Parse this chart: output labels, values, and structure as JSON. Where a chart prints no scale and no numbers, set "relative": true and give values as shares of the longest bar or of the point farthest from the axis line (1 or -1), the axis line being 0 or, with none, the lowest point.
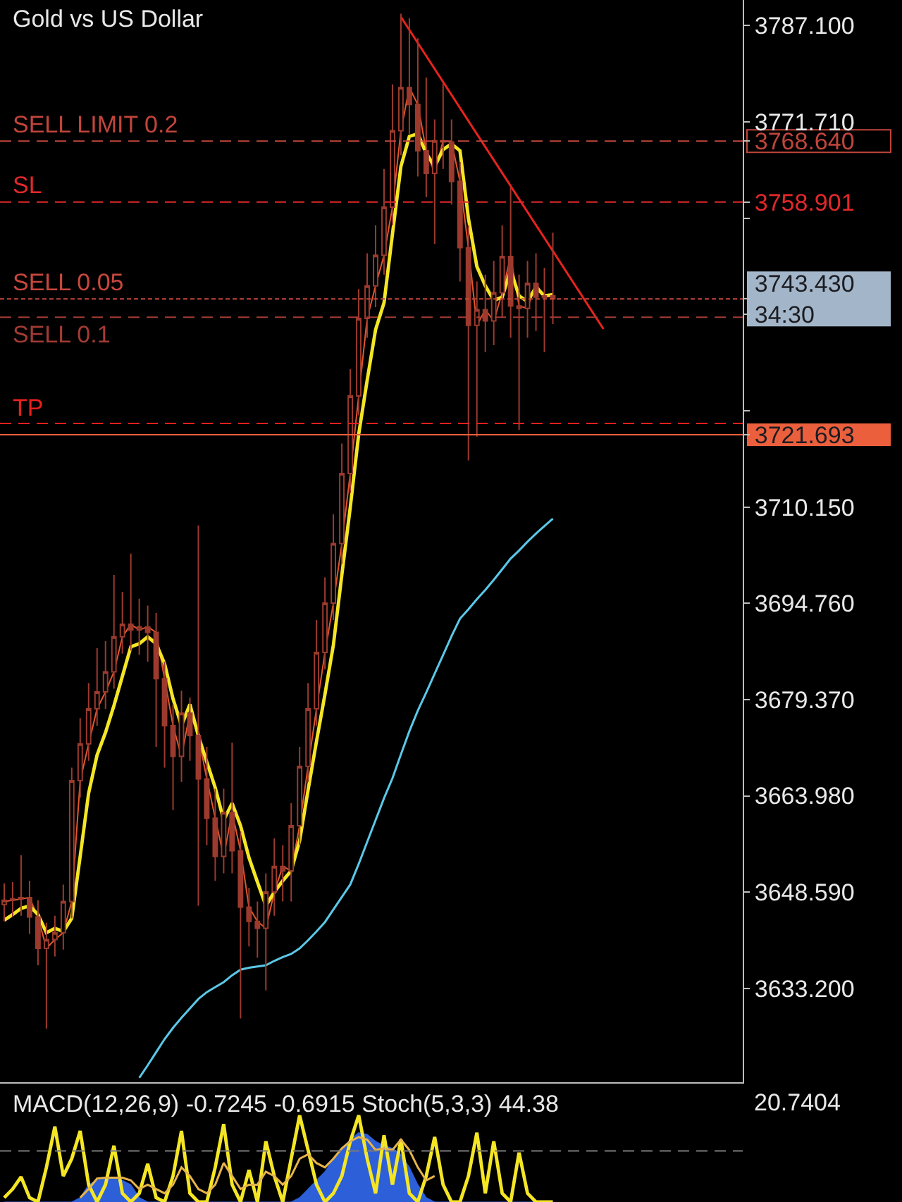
{
  "chart_data": [
    {
      "type": "candlestick",
      "title": "Gold vs US Dollar",
      "categories": [
        null,
        null,
        null,
        null,
        null,
        null,
        null,
        null,
        null,
        null,
        null,
        null,
        null,
        null,
        null,
        null,
        null,
        null,
        null,
        null,
        null,
        null,
        null,
        null,
        null,
        null,
        null,
        null,
        null,
        null,
        null,
        null,
        null,
        null,
        null,
        null,
        null,
        null,
        null,
        null,
        null,
        null,
        null,
        null,
        null,
        null,
        null,
        null,
        null,
        null,
        null,
        null,
        null,
        null,
        null,
        null,
        null,
        null,
        null,
        null,
        null,
        null,
        null,
        null,
        null,
        null,
        null,
        null,
        null,
        null,
        null,
        null,
        null,
        null,
        null,
        null,
        null,
        null,
        null,
        null,
        null,
        null,
        null,
        null,
        null,
        null,
        null,
        null
      ],
      "color": "#9c3a2e",
      "ohlc": [
        [
          3646.6,
          3650.0,
          3643.9,
          3647.3
        ],
        [
          3647.3,
          3650.2,
          3644.6,
          3647.5
        ],
        [
          3647.5,
          3654.5,
          3644.8,
          3647.7
        ],
        [
          3647.7,
          3650.4,
          3641.9,
          3644.6
        ],
        [
          3644.6,
          3647.3,
          3636.9,
          3639.6
        ],
        [
          3639.6,
          3643.7,
          3626.8,
          3641.0
        ],
        [
          3641.0,
          3644.8,
          3638.3,
          3642.1
        ],
        [
          3642.1,
          3649.8,
          3639.4,
          3647.1
        ],
        [
          3647.1,
          3668.5,
          3644.4,
          3666.4
        ],
        [
          3666.4,
          3676.4,
          3663.7,
          3672.3
        ],
        [
          3672.3,
          3682.0,
          3669.6,
          3677.9
        ],
        [
          3677.9,
          3687.6,
          3675.2,
          3680.6
        ],
        [
          3680.6,
          3688.7,
          3677.9,
          3683.8
        ],
        [
          3683.8,
          3699.3,
          3681.1,
          3689.4
        ],
        [
          3689.4,
          3696.6,
          3686.7,
          3691.4
        ],
        [
          3691.4,
          3702.7,
          3687.2,
          3690.5
        ],
        [
          3690.5,
          3695.5,
          3686.5,
          3691.0
        ],
        [
          3691.0,
          3694.4,
          3685.4,
          3690.1
        ],
        [
          3690.1,
          3693.2,
          3671.8,
          3682.7
        ],
        [
          3682.7,
          3685.4,
          3668.5,
          3675.2
        ],
        [
          3675.2,
          3678.6,
          3661.7,
          3670.3
        ],
        [
          3670.3,
          3680.8,
          3666.2,
          3677.2
        ],
        [
          3677.2,
          3679.7,
          3669.6,
          3673.6
        ],
        [
          3673.6,
          3707.2,
          3646.4,
          3666.7
        ],
        [
          3666.7,
          3671.8,
          3656.1,
          3660.4
        ],
        [
          3660.4,
          3665.1,
          3650.4,
          3654.3
        ],
        [
          3654.3,
          3665.1,
          3651.6,
          3661.3
        ],
        [
          3661.3,
          3672.5,
          3651.6,
          3655.2
        ],
        [
          3655.2,
          3658.3,
          3628.4,
          3646.2
        ],
        [
          3646.2,
          3649.3,
          3639.9,
          3643.9
        ],
        [
          3643.9,
          3647.1,
          3638.1,
          3642.8
        ],
        [
          3642.8,
          3651.6,
          3632.9,
          3648.6
        ],
        [
          3648.6,
          3657.2,
          3644.8,
          3652.7
        ],
        [
          3652.7,
          3656.1,
          3647.1,
          3652.0
        ],
        [
          3652.0,
          3662.8,
          3647.1,
          3659.2
        ],
        [
          3659.2,
          3671.8,
          3656.1,
          3668.7
        ],
        [
          3668.7,
          3682.0,
          3666.2,
          3677.9
        ],
        [
          3677.9,
          3692.1,
          3675.2,
          3686.9
        ],
        [
          3686.9,
          3698.9,
          3684.2,
          3694.8
        ],
        [
          3694.8,
          3709.0,
          3692.1,
          3704.3
        ],
        [
          3704.3,
          3720.3,
          3701.1,
          3715.5
        ],
        [
          3715.5,
          3732.2,
          3712.4,
          3727.9
        ],
        [
          3727.9,
          3745.0,
          3724.8,
          3740.3
        ],
        [
          3740.3,
          3750.7,
          3737.2,
          3745.5
        ],
        [
          3745.5,
          3755.2,
          3742.1,
          3750.4
        ],
        [
          3750.4,
          3764.2,
          3747.3,
          3758.1
        ],
        [
          3758.1,
          3777.7,
          3755.2,
          3770.3
        ],
        [
          3770.3,
          3789.0,
          3766.4,
          3777.2
        ],
        [
          3777.2,
          3788.3,
          3769.8,
          3774.5
        ],
        [
          3774.5,
          3785.1,
          3763.0,
          3767.1
        ],
        [
          3767.1,
          3778.8,
          3759.7,
          3763.5
        ],
        [
          3763.5,
          3772.1,
          3752.2,
          3768.7
        ],
        [
          3768.7,
          3778.1,
          3764.2,
          3768.5
        ],
        [
          3768.5,
          3772.1,
          3758.5,
          3762.2
        ],
        [
          3762.2,
          3765.3,
          3746.2,
          3751.6
        ],
        [
          3751.6,
          3755.2,
          3717.6,
          3739.2
        ],
        [
          3739.2,
          3746.2,
          3721.4,
          3741.7
        ],
        [
          3741.7,
          3747.3,
          3734.9,
          3739.9
        ],
        [
          3739.9,
          3749.5,
          3736.0,
          3744.4
        ],
        [
          3744.4,
          3755.2,
          3740.5,
          3750.2
        ],
        [
          3750.2,
          3761.2,
          3737.2,
          3742.3
        ],
        [
          3742.3,
          3747.3,
          3722.5,
          3741.9
        ],
        [
          3741.9,
          3749.5,
          3737.2,
          3745.9
        ],
        [
          3745.9,
          3750.7,
          3738.3,
          3743.7
        ],
        [
          3743.7,
          3748.4,
          3734.9,
          3743.9
        ],
        [
          3743.9,
          3754.0,
          3739.4,
          3743.43
        ],
        null,
        null,
        null,
        null,
        null,
        null,
        null,
        null,
        null,
        null,
        null,
        null,
        null,
        null,
        null,
        null,
        null,
        null,
        null,
        null,
        null,
        null
      ],
      "series": [
        {
          "type": "line",
          "color": "#e2572e",
          "values": [
            3647.1,
            3647.3,
            3647.5,
            3647.7,
            3644.6,
            3639.6,
            3641.0,
            3642.1,
            3647.1,
            3666.4,
            3672.3,
            3677.9,
            3680.6,
            3683.8,
            3689.4,
            3691.4,
            3690.5,
            3691.0,
            3690.1,
            3682.7,
            3675.2,
            3670.3,
            3677.2,
            3673.6,
            3666.7,
            3660.4,
            3654.3,
            3661.3,
            3655.2,
            3646.2,
            3643.9,
            3642.8,
            3648.6,
            3652.7,
            3652.0,
            3659.2,
            3668.7,
            3677.9,
            3686.9,
            3694.8,
            3704.3,
            3715.5,
            3727.9,
            3740.3,
            3745.5,
            3750.4,
            3758.1,
            3770.3,
            3777.2,
            3774.5,
            3767.1,
            3763.5,
            3768.7,
            3768.5,
            3762.2,
            3751.6,
            3739.2,
            3741.7,
            3739.9,
            3744.4,
            3750.2,
            3742.3,
            3741.9,
            3745.9,
            3743.7,
            3743.9,
            null,
            null,
            null,
            null,
            null,
            null,
            null,
            null,
            null,
            null,
            null,
            null,
            null,
            null,
            null,
            null,
            null,
            null,
            null,
            null,
            null,
            null
          ]
        },
        {
          "type": "line",
          "color": "#f5e625",
          "values": [
            3644.1,
            3645.0,
            3646.0,
            3646.4,
            3645.0,
            3642.1,
            3642.8,
            3642.3,
            3644.4,
            3654.3,
            3664.4,
            3670.5,
            3674.1,
            3678.4,
            3683.1,
            3687.8,
            3688.3,
            3689.4,
            3688.3,
            3685.1,
            3679.5,
            3675.2,
            3678.6,
            3673.6,
            3669.4,
            3665.3,
            3660.1,
            3662.8,
            3659.2,
            3654.1,
            3650.2,
            3646.4,
            3648.6,
            3650.4,
            3652.0,
            3656.8,
            3664.9,
            3672.7,
            3680.2,
            3688.1,
            3699.3,
            3710.1,
            3721.8,
            3730.4,
            3738.5,
            3742.8,
            3753.8,
            3764.6,
            3769.4,
            3769.8,
            3766.7,
            3764.6,
            3767.3,
            3768.2,
            3767.1,
            3756.3,
            3748.6,
            3745.5,
            3743.2,
            3743.7,
            3748.0,
            3743.9,
            3743.0,
            3745.3,
            3743.9,
            3744.1,
            null,
            null,
            null,
            null,
            null,
            null,
            null,
            null,
            null,
            null,
            null,
            null,
            null,
            null,
            null,
            null,
            null,
            null,
            null,
            null,
            null,
            null
          ]
        },
        {
          "type": "line",
          "color": "#5bc8e8",
          "values": [
            null,
            null,
            null,
            null,
            null,
            null,
            null,
            null,
            null,
            null,
            null,
            null,
            null,
            null,
            null,
            null,
            3618.9,
            3620.9,
            3623.0,
            3625.1,
            3626.9,
            3628.5,
            3630.0,
            3631.5,
            3632.6,
            3633.4,
            3634.2,
            3635.3,
            3636.2,
            3636.5,
            3636.7,
            3636.9,
            3637.6,
            3638.2,
            3638.7,
            3639.6,
            3640.9,
            3642.3,
            3643.8,
            3645.8,
            3647.8,
            3649.8,
            3653.1,
            3656.6,
            3660.1,
            3663.6,
            3666.8,
            3670.6,
            3674.3,
            3677.6,
            3680.5,
            3683.5,
            3686.5,
            3689.5,
            3692.3,
            3693.8,
            3695.4,
            3696.9,
            3698.5,
            3700.2,
            3701.9,
            3703.2,
            3704.6,
            3705.9,
            3707.1,
            3708.3,
            null,
            null,
            null,
            null,
            null,
            null,
            null,
            null,
            null,
            null,
            null,
            null,
            null,
            null,
            null,
            null,
            null,
            null,
            null,
            null,
            null,
            null
          ]
        },
        {
          "type": "line",
          "color": "#e8231f",
          "values": [
            null,
            null,
            null,
            null,
            null,
            null,
            null,
            null,
            null,
            null,
            null,
            null,
            null,
            null,
            null,
            null,
            null,
            null,
            null,
            null,
            null,
            null,
            null,
            null,
            null,
            null,
            null,
            null,
            null,
            null,
            null,
            null,
            null,
            null,
            null,
            null,
            null,
            null,
            null,
            null,
            null,
            null,
            null,
            null,
            null,
            null,
            null,
            3788.5,
            null,
            null,
            null,
            null,
            null,
            null,
            null,
            null,
            null,
            null,
            null,
            null,
            null,
            null,
            null,
            null,
            null,
            null,
            null,
            null,
            null,
            null,
            null,
            3738.6,
            null,
            null,
            null,
            null,
            null,
            null,
            null,
            null,
            null,
            null,
            null,
            null,
            null,
            null,
            null,
            null
          ]
        }
      ],
      "ylim": [
        3618.2,
        3791.2
      ],
      "yticks": [
        {
          "value": 3633.2,
          "label": "3633.200"
        },
        {
          "value": 3648.59,
          "label": "3648.590"
        },
        {
          "value": 3663.98,
          "label": "3663.980"
        },
        {
          "value": 3679.37,
          "label": "3679.370"
        },
        {
          "value": 3694.76,
          "label": "3694.760"
        },
        {
          "value": 3710.15,
          "label": "3710.150"
        },
        {
          "value": 3721.693,
          "label": "3721.693"
        },
        {
          "value": 3725.54,
          "label": null
        },
        {
          "value": 3740.93,
          "label": null
        },
        {
          "value": 3743.43,
          "label": "3743.430\n34:30"
        },
        {
          "value": 3756.32,
          "label": null
        },
        {
          "value": 3758.901,
          "label": "3758.901"
        },
        {
          "value": 3768.64,
          "label": "3768.640"
        },
        {
          "value": 3771.71,
          "label": "3771.710"
        },
        {
          "value": 3787.1,
          "label": "3787.100"
        }
      ],
      "tick_labels": "y",
      "ref_lines": [
        {
          "axis": "y",
          "value": 3768.64,
          "label": "SELL LIMIT 0.2",
          "color": "#c0453b",
          "line_style": "dashed"
        },
        {
          "axis": "y",
          "value": 3758.901,
          "label": "SL",
          "color": "#e3282a",
          "line_style": "dashed"
        },
        {
          "axis": "y",
          "value": 3743.43,
          "label": "SELL 0.05",
          "color": "#c8473d",
          "line_style": "dotted"
        },
        {
          "axis": "y",
          "value": 3740.5,
          "label": "SELL 0.1",
          "color": "#a33b34",
          "line_style": "dashed"
        },
        {
          "axis": "y",
          "value": 3723.5,
          "label": "TP",
          "color": "#e8201e",
          "line_style": "dashed"
        },
        {
          "axis": "y",
          "value": 3721.693,
          "color": "#ec5f3c",
          "line_style": "solid"
        }
      ]
    },
    {
      "type": "area",
      "title": "MACD(12,26,9) -0.7245 -0.6915 Stoch(5,3,3) 44.38",
      "categories": [
        null,
        null,
        null,
        null,
        null,
        null,
        null,
        null,
        null,
        null,
        null,
        null,
        null,
        null,
        null,
        null,
        null,
        null,
        null,
        null,
        null,
        null,
        null,
        null,
        null,
        null,
        null,
        null,
        null,
        null,
        null,
        null,
        null,
        null,
        null,
        null,
        null,
        null,
        null,
        null,
        null,
        null,
        null,
        null,
        null,
        null,
        null,
        null,
        null,
        null,
        null,
        null,
        null,
        null,
        null,
        null,
        null,
        null,
        null,
        null,
        null,
        null,
        null,
        null,
        null,
        null,
        null,
        null,
        null,
        null,
        null,
        null,
        null,
        null,
        null,
        null,
        null,
        null,
        null,
        null,
        null,
        null,
        null,
        null,
        null,
        null,
        null,
        null
      ],
      "relative": true,
      "tick_labels": false,
      "series": [
        {
          "color": "#2d5fd8",
          "values": [
            0,
            0,
            0,
            0,
            0,
            0,
            0,
            0,
            0,
            0.05,
            0.2,
            0.25,
            0.27,
            0.27,
            0.25,
            0.2,
            0.05,
            0,
            0,
            0,
            0,
            0,
            0,
            0,
            0,
            0,
            0,
            0,
            0,
            0,
            0,
            0,
            0,
            0,
            0,
            0.05,
            0.15,
            0.25,
            0.35,
            0.5,
            0.62,
            0.72,
            0.8,
            0.78,
            0.7,
            0.65,
            0.62,
            0.55,
            0.4,
            0.2,
            0.05,
            0,
            0,
            0,
            0,
            0,
            0,
            0,
            0,
            0,
            0,
            0,
            0,
            0,
            0,
            0,
            null,
            null,
            null,
            null,
            null,
            null,
            null,
            null,
            null,
            null,
            null,
            null,
            null,
            null,
            null,
            null,
            null,
            null,
            null,
            null,
            null,
            null
          ]
        },
        {
          "type": "line",
          "color": "#f5e625",
          "values": [
            0.05,
            0.15,
            0.29,
            0.05,
            0,
            0.4,
            0.87,
            0.3,
            0.5,
            0.82,
            0.2,
            0,
            0.2,
            0.65,
            0.1,
            0,
            0.1,
            0.44,
            0.05,
            0,
            0.3,
            0.82,
            0.1,
            0,
            0,
            0.4,
            0.9,
            0.2,
            0,
            0.37,
            0,
            0.7,
            0.3,
            0,
            0.5,
            1,
            0.6,
            0.2,
            0,
            0.1,
            0.3,
            0.7,
            1,
            0.5,
            0.1,
            0.77,
            0.2,
            0.72,
            0.1,
            0,
            0.3,
            0.75,
            0.2,
            0,
            0,
            0.3,
            0.8,
            0.1,
            0.7,
            0.1,
            0,
            0.57,
            0.1,
            0,
            0,
            0,
            null,
            null,
            null,
            null,
            null,
            null,
            null,
            null,
            null,
            null,
            null,
            null,
            null,
            null,
            null,
            null,
            null,
            null,
            null,
            null,
            null,
            null
          ]
        },
        {
          "type": "line",
          "color": "#e6b44a",
          "values": [
            null,
            null,
            null,
            null,
            null,
            null,
            null,
            null,
            null,
            0.05,
            0.15,
            0.27,
            0.28,
            0.28,
            0.28,
            0.25,
            0.15,
            0.2,
            0.15,
            0.1,
            0.2,
            0.4,
            0.3,
            0.15,
            0.1,
            0.2,
            0.45,
            0.3,
            0.15,
            0.2,
            0.2,
            0.35,
            0.3,
            0.2,
            0.3,
            0.5,
            0.55,
            0.45,
            0.4,
            0.5,
            0.62,
            0.7,
            0.75,
            0.72,
            0.6,
            0.62,
            0.6,
            0.72,
            0.6,
            0.4,
            0.25,
            0.3,
            null,
            null,
            null,
            null,
            null,
            null,
            null,
            null,
            null,
            null,
            null,
            null,
            null,
            null,
            null,
            null,
            null,
            null,
            null,
            null,
            null,
            null,
            null,
            null,
            null,
            null,
            null,
            null,
            null,
            null,
            null,
            null,
            null,
            null,
            null,
            null
          ]
        }
      ],
      "ref_lines": [
        {
          "axis": "y",
          "value": 0.59,
          "color": "#7a7a7a",
          "line_style": "dashed"
        }
      ],
      "annotations": [
        "20.7404"
      ]
    }
  ]
}
